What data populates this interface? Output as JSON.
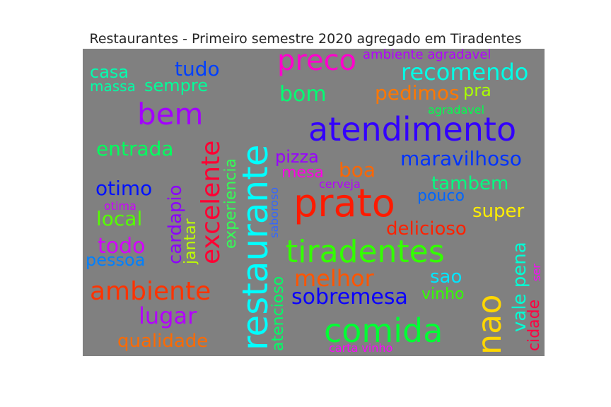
{
  "chart_data": {
    "type": "wordcloud",
    "title": "Restaurantes - Primeiro semestre 2020 agregado em Tiradentes",
    "background": "#808080",
    "words": [
      {
        "text": "restaurante",
        "color": "#00ffff",
        "orient": "v"
      },
      {
        "text": "prato",
        "color": "#ff1a00",
        "orient": "h"
      },
      {
        "text": "atendimento",
        "color": "#3300ff",
        "orient": "h"
      },
      {
        "text": "tiradentes",
        "color": "#33ff00",
        "orient": "h"
      },
      {
        "text": "comida",
        "color": "#00ff33",
        "orient": "h"
      },
      {
        "text": "nao",
        "color": "#ffd700",
        "orient": "v"
      },
      {
        "text": "excelente",
        "color": "#ff0033",
        "orient": "v"
      },
      {
        "text": "bem",
        "color": "#a300ff",
        "orient": "h"
      },
      {
        "text": "ambiente",
        "color": "#ff3300",
        "orient": "h"
      },
      {
        "text": "preco",
        "color": "#ff00cc",
        "orient": "h"
      },
      {
        "text": "recomendo",
        "color": "#00ffe6",
        "orient": "h"
      },
      {
        "text": "lugar",
        "color": "#b300ff",
        "orient": "h"
      },
      {
        "text": "sobremesa",
        "color": "#0a00ff",
        "orient": "h"
      },
      {
        "text": "melhor",
        "color": "#ff5500",
        "orient": "h"
      },
      {
        "text": "maravilhoso",
        "color": "#0033ff",
        "orient": "h"
      },
      {
        "text": "entrada",
        "color": "#00ff5e",
        "orient": "h"
      },
      {
        "text": "bom",
        "color": "#00ff73",
        "orient": "h"
      },
      {
        "text": "tudo",
        "color": "#0040ff",
        "orient": "h"
      },
      {
        "text": "pedimos",
        "color": "#ff7700",
        "orient": "h"
      },
      {
        "text": "otimo",
        "color": "#0011ff",
        "orient": "h"
      },
      {
        "text": "todo",
        "color": "#d400ff",
        "orient": "h"
      },
      {
        "text": "local",
        "color": "#55ff00",
        "orient": "h"
      },
      {
        "text": "cardapio",
        "color": "#8c00ff",
        "orient": "v"
      },
      {
        "text": "tambem",
        "color": "#00ff80",
        "orient": "h"
      },
      {
        "text": "super",
        "color": "#ffee00",
        "orient": "h"
      },
      {
        "text": "delicioso",
        "color": "#ff2200",
        "orient": "h"
      },
      {
        "text": "qualidade",
        "color": "#ff6a00",
        "orient": "h"
      },
      {
        "text": "boa",
        "color": "#ff6600",
        "orient": "h"
      },
      {
        "text": "pizza",
        "color": "#9900ff",
        "orient": "h"
      },
      {
        "text": "casa",
        "color": "#00ffb0",
        "orient": "h"
      },
      {
        "text": "sempre",
        "color": "#00ff99",
        "orient": "h"
      },
      {
        "text": "massa",
        "color": "#00ffa6",
        "orient": "h"
      },
      {
        "text": "experiencia",
        "color": "#33ff55",
        "orient": "v"
      },
      {
        "text": "pessoa",
        "color": "#0080ff",
        "orient": "h"
      },
      {
        "text": "jantar",
        "color": "#bfff00",
        "orient": "v"
      },
      {
        "text": "vale pena",
        "color": "#00ffd5",
        "orient": "v"
      },
      {
        "text": "sao",
        "color": "#00e6ff",
        "orient": "h"
      },
      {
        "text": "mesa",
        "color": "#ff00e6",
        "orient": "h"
      },
      {
        "text": "pra",
        "color": "#aaff00",
        "orient": "h"
      },
      {
        "text": "pouco",
        "color": "#0066ff",
        "orient": "h"
      },
      {
        "text": "atencioso",
        "color": "#00ff66",
        "orient": "v"
      },
      {
        "text": "vinho",
        "color": "#33ff00",
        "orient": "h"
      },
      {
        "text": "cidade",
        "color": "#ff0040",
        "orient": "v"
      },
      {
        "text": "ambiente agradavel",
        "color": "#b300ff",
        "orient": "h"
      },
      {
        "text": "agradavel",
        "color": "#00ff4d",
        "orient": "h"
      },
      {
        "text": "cerveja",
        "color": "#b300ff",
        "orient": "h"
      },
      {
        "text": "saboroso",
        "color": "#3366ff",
        "orient": "v"
      },
      {
        "text": "otima",
        "color": "#cc00ff",
        "orient": "h"
      },
      {
        "text": "carta vinho",
        "color": "#ff00ff",
        "orient": "h"
      },
      {
        "text": "ser",
        "color": "#ff00ff",
        "orient": "v"
      }
    ]
  }
}
